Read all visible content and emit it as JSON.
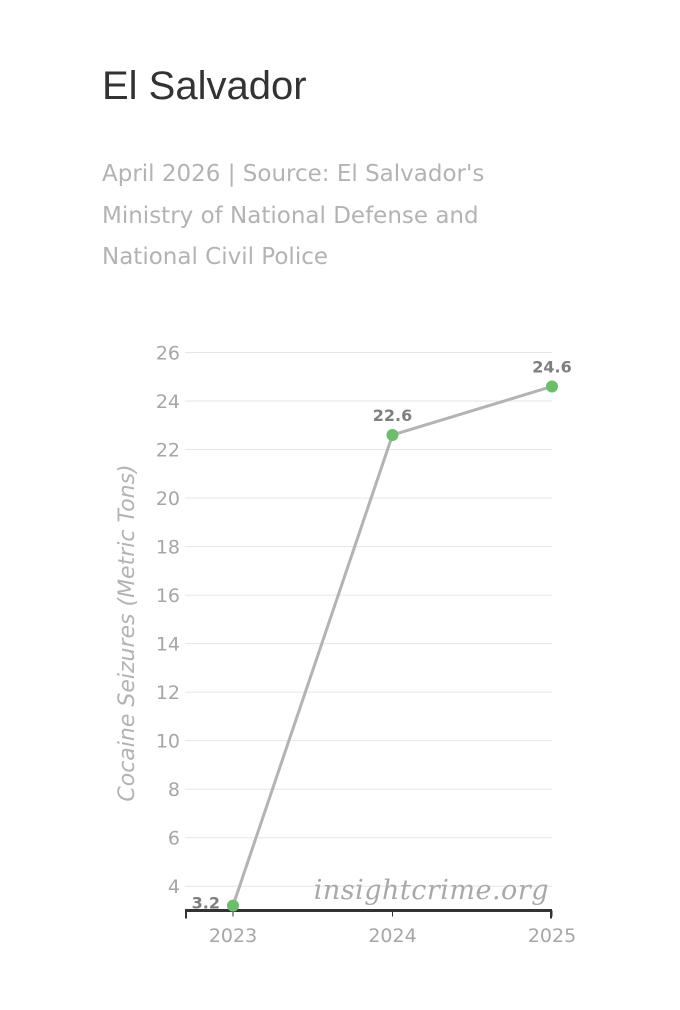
{
  "header": {
    "title": "El Salvador",
    "subtitle": "April 2026 | Source: El Salvador's Ministry of National Defense and National Civil Police"
  },
  "watermark": "insightcrime.org",
  "colors": {
    "line": "#b3b3b3",
    "marker": "#6abf69",
    "grid": "#e6e6e6",
    "axis": "#333333"
  },
  "chart_data": {
    "type": "line",
    "title": "El Salvador",
    "subtitle": "April 2026 | Source: El Salvador's Ministry of National Defense and National Civil Police",
    "xlabel": "",
    "ylabel": "Cocaine Seizures (Metric Tons)",
    "x": [
      "2023",
      "2024",
      "2025"
    ],
    "values": [
      3.2,
      22.6,
      24.6
    ],
    "data_labels": [
      "3.2",
      "22.6",
      "24.6"
    ],
    "ylim": [
      3,
      26
    ],
    "yticks": [
      4,
      6,
      8,
      10,
      12,
      14,
      16,
      18,
      20,
      22,
      24,
      26
    ],
    "grid": true,
    "legend": "none"
  }
}
